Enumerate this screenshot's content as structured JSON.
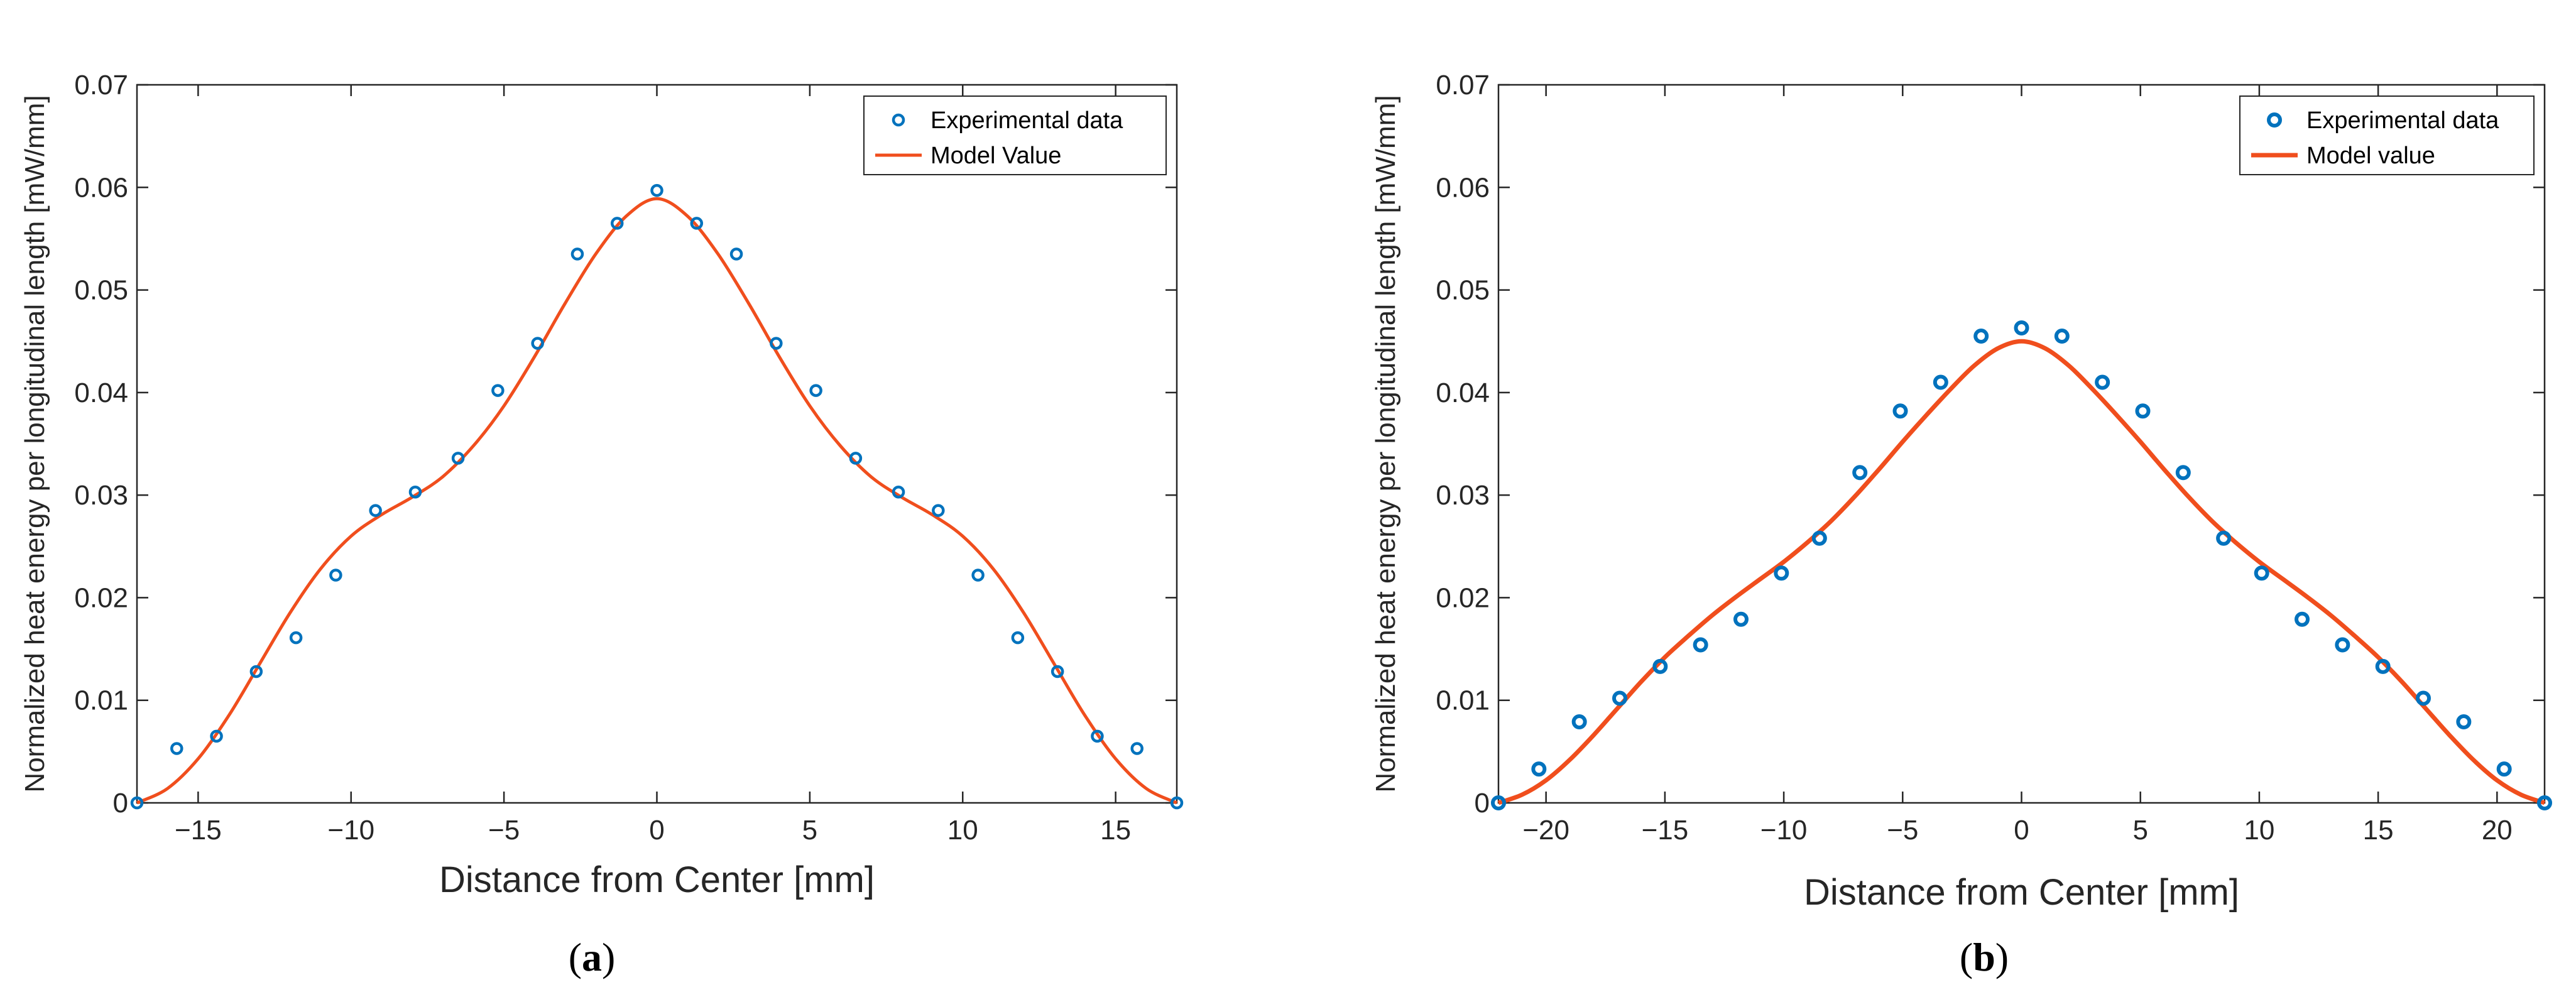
{
  "colors": {
    "data_marker": "#0072BD",
    "model_line": "#F04E1D",
    "axis": "#262626",
    "grid_box": "#262626"
  },
  "chart_data": [
    {
      "panel_label": "a",
      "type": "scatter",
      "xlabel": "Distance from Center [mm]",
      "ylabel": "Normalized heat energy per longitudinal length [mW/mm]",
      "xlim": [
        -17,
        17
      ],
      "ylim": [
        0,
        0.07
      ],
      "xticks": [
        -15,
        -10,
        -5,
        0,
        5,
        10,
        15
      ],
      "xtick_labels": [
        "−15",
        "−10",
        "−5",
        "0",
        "5",
        "10",
        "15"
      ],
      "yticks": [
        0,
        0.01,
        0.02,
        0.03,
        0.04,
        0.05,
        0.06,
        0.07
      ],
      "ytick_labels": [
        "0",
        "0.01",
        "0.02",
        "0.03",
        "0.04",
        "0.05",
        "0.06",
        "0.07"
      ],
      "legend_position": "top-right",
      "series": [
        {
          "name": "Experimental data",
          "kind": "markers",
          "x": [
            -17.0,
            -15.7,
            -14.4,
            -13.1,
            -11.8,
            -10.5,
            -9.2,
            -7.9,
            -6.5,
            -5.2,
            -3.9,
            -2.6,
            -1.3,
            0.0,
            1.3,
            2.6,
            3.9,
            5.2,
            6.5,
            7.9,
            9.2,
            10.5,
            11.8,
            13.1,
            14.4,
            15.7,
            17.0
          ],
          "y": [
            0.0,
            0.0053,
            0.0065,
            0.0128,
            0.0161,
            0.0222,
            0.0285,
            0.0303,
            0.0336,
            0.0402,
            0.0448,
            0.0535,
            0.0565,
            0.0597,
            0.0565,
            0.0535,
            0.0448,
            0.0402,
            0.0336,
            0.0303,
            0.0285,
            0.0222,
            0.0161,
            0.0128,
            0.0065,
            0.0053,
            0.0
          ]
        },
        {
          "name": "Model Value",
          "kind": "line",
          "x": [
            -17.0,
            -16.0,
            -15.0,
            -14.0,
            -13.0,
            -12.0,
            -11.0,
            -10.0,
            -9.0,
            -8.0,
            -7.0,
            -6.0,
            -5.0,
            -4.0,
            -3.0,
            -2.0,
            -1.0,
            0.0,
            1.0,
            2.0,
            3.0,
            4.0,
            5.0,
            6.0,
            7.0,
            8.0,
            9.0,
            10.0,
            11.0,
            12.0,
            13.0,
            14.0,
            15.0,
            16.0,
            17.0
          ],
          "y": [
            0.0,
            0.0014,
            0.0043,
            0.0085,
            0.0135,
            0.0185,
            0.0228,
            0.026,
            0.0281,
            0.0298,
            0.0318,
            0.0348,
            0.0387,
            0.0435,
            0.0487,
            0.0535,
            0.0572,
            0.0589,
            0.0572,
            0.0535,
            0.0487,
            0.0435,
            0.0387,
            0.0348,
            0.0318,
            0.0298,
            0.0281,
            0.026,
            0.0228,
            0.0185,
            0.0135,
            0.0085,
            0.0043,
            0.0014,
            0.0
          ]
        }
      ]
    },
    {
      "panel_label": "b",
      "type": "scatter",
      "xlabel": "Distance from Center [mm]",
      "ylabel": "Normalized heat energy per longitudinal length [mW/mm]",
      "xlim": [
        -22,
        22
      ],
      "ylim": [
        0,
        0.07
      ],
      "xticks": [
        -20,
        -15,
        -10,
        -5,
        0,
        5,
        10,
        15,
        20
      ],
      "xtick_labels": [
        "−20",
        "−15",
        "−10",
        "−5",
        "0",
        "5",
        "10",
        "15",
        "20"
      ],
      "yticks": [
        0,
        0.01,
        0.02,
        0.03,
        0.04,
        0.05,
        0.06,
        0.07
      ],
      "ytick_labels": [
        "0",
        "0.01",
        "0.02",
        "0.03",
        "0.04",
        "0.05",
        "0.06",
        "0.07"
      ],
      "legend_position": "top-right",
      "series": [
        {
          "name": "Experimental data",
          "kind": "markers",
          "x": [
            -22.0,
            -20.3,
            -18.6,
            -16.9,
            -15.2,
            -13.5,
            -11.8,
            -10.1,
            -8.5,
            -6.8,
            -5.1,
            -3.4,
            -1.7,
            0.0,
            1.7,
            3.4,
            5.1,
            6.8,
            8.5,
            10.1,
            11.8,
            13.5,
            15.2,
            16.9,
            18.6,
            20.3,
            22.0
          ],
          "y": [
            0.0,
            0.0033,
            0.0079,
            0.0102,
            0.0133,
            0.0154,
            0.0179,
            0.0224,
            0.0258,
            0.0322,
            0.0382,
            0.041,
            0.0455,
            0.0463,
            0.0455,
            0.041,
            0.0382,
            0.0322,
            0.0258,
            0.0224,
            0.0179,
            0.0154,
            0.0133,
            0.0102,
            0.0079,
            0.0033,
            0.0
          ]
        },
        {
          "name": "Model value",
          "kind": "line",
          "x": [
            -22.0,
            -21.0,
            -20.0,
            -19.0,
            -18.0,
            -17.0,
            -16.0,
            -15.0,
            -14.0,
            -13.0,
            -12.0,
            -11.0,
            -10.0,
            -9.0,
            -8.0,
            -7.0,
            -6.0,
            -5.0,
            -4.0,
            -3.0,
            -2.0,
            -1.0,
            0.0,
            1.0,
            2.0,
            3.0,
            4.0,
            5.0,
            6.0,
            7.0,
            8.0,
            9.0,
            10.0,
            11.0,
            12.0,
            13.0,
            14.0,
            15.0,
            16.0,
            17.0,
            18.0,
            19.0,
            20.0,
            21.0,
            22.0
          ],
          "y": [
            0.0,
            0.0008,
            0.0022,
            0.0042,
            0.0066,
            0.0092,
            0.0118,
            0.0142,
            0.0163,
            0.0183,
            0.0201,
            0.0218,
            0.0235,
            0.0254,
            0.0275,
            0.0299,
            0.0325,
            0.0352,
            0.0378,
            0.0403,
            0.0426,
            0.0443,
            0.045,
            0.0443,
            0.0426,
            0.0403,
            0.0378,
            0.0352,
            0.0325,
            0.0299,
            0.0275,
            0.0254,
            0.0235,
            0.0218,
            0.0201,
            0.0183,
            0.0163,
            0.0142,
            0.0118,
            0.0092,
            0.0066,
            0.0042,
            0.0022,
            0.0008,
            0.0
          ]
        }
      ]
    }
  ]
}
